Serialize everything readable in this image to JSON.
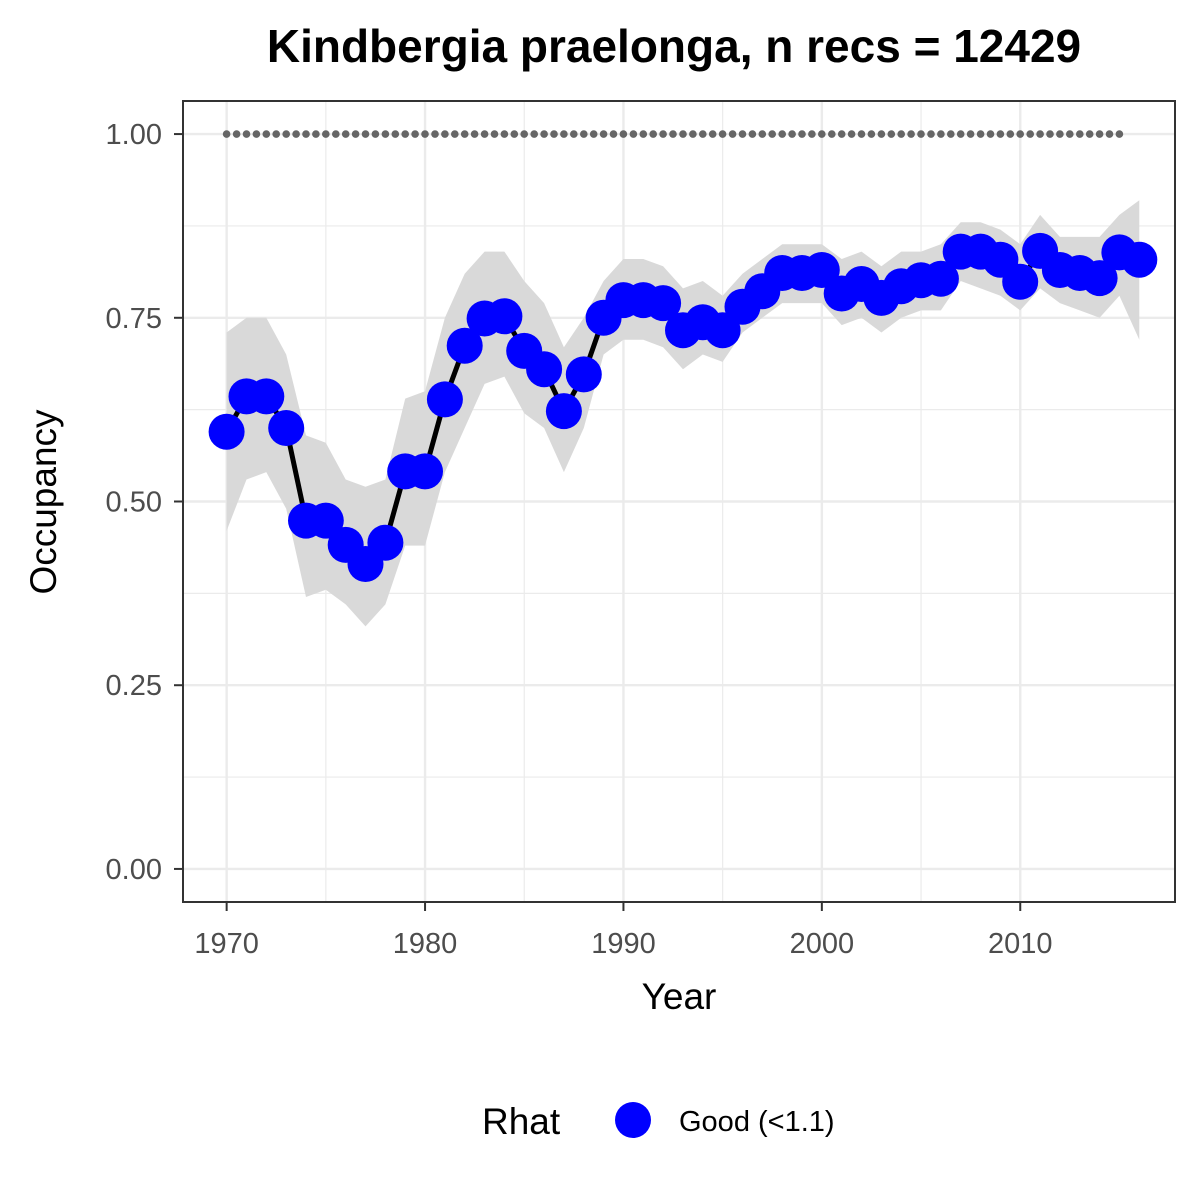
{
  "chart_data": {
    "type": "line",
    "title": "Kindbergia praelonga, n recs = 12429",
    "xlabel": "Year",
    "ylabel": "Occupancy",
    "xlim": [
      1967.8,
      2017.8
    ],
    "ylim": [
      -0.045,
      1.045
    ],
    "x_ticks": [
      1970,
      1980,
      1990,
      2000,
      2010
    ],
    "x_tick_labels": [
      "1970",
      "1980",
      "1990",
      "2000",
      "2010"
    ],
    "y_ticks": [
      0,
      0.25,
      0.5,
      0.75,
      1.0
    ],
    "y_tick_labels": [
      "0.00",
      "0.25",
      "0.50",
      "0.75",
      "1.00"
    ],
    "grid": true,
    "legend": {
      "title": "Rhat",
      "position": "bottom",
      "items": [
        {
          "label": "Good (<1.1)",
          "color": "#0000ff"
        }
      ]
    },
    "colors": {
      "points": "#0000ff",
      "line": "#000000",
      "ribbon": "#d9d9d9",
      "reference": "#666666",
      "grid": "#ebebeb",
      "panel_border": "#333333"
    },
    "x": [
      1970,
      1971,
      1972,
      1973,
      1974,
      1975,
      1976,
      1977,
      1978,
      1979,
      1980,
      1981,
      1982,
      1983,
      1984,
      1985,
      1986,
      1987,
      1988,
      1989,
      1990,
      1991,
      1992,
      1993,
      1994,
      1995,
      1996,
      1997,
      1998,
      1999,
      2000,
      2001,
      2002,
      2003,
      2004,
      2005,
      2006,
      2007,
      2008,
      2009,
      2010,
      2011,
      2012,
      2013,
      2014,
      2015,
      2016
    ],
    "series": [
      {
        "name": "Good (<1.1)",
        "values": [
          0.595,
          0.643,
          0.643,
          0.6,
          0.474,
          0.474,
          0.441,
          0.415,
          0.444,
          0.541,
          0.541,
          0.639,
          0.712,
          0.749,
          0.752,
          0.705,
          0.68,
          0.623,
          0.673,
          0.75,
          0.774,
          0.774,
          0.77,
          0.733,
          0.744,
          0.733,
          0.765,
          0.786,
          0.811,
          0.811,
          0.815,
          0.783,
          0.796,
          0.777,
          0.793,
          0.801,
          0.803,
          0.84,
          0.84,
          0.829,
          0.799,
          0.841,
          0.815,
          0.811,
          0.804,
          0.839,
          0.829
        ],
        "lower": [
          0.46,
          0.53,
          0.54,
          0.49,
          0.37,
          0.38,
          0.36,
          0.33,
          0.36,
          0.44,
          0.44,
          0.54,
          0.6,
          0.66,
          0.67,
          0.62,
          0.6,
          0.54,
          0.6,
          0.7,
          0.72,
          0.72,
          0.71,
          0.68,
          0.7,
          0.69,
          0.73,
          0.75,
          0.77,
          0.77,
          0.77,
          0.74,
          0.75,
          0.73,
          0.75,
          0.76,
          0.76,
          0.8,
          0.79,
          0.78,
          0.76,
          0.79,
          0.77,
          0.76,
          0.75,
          0.78,
          0.72
        ],
        "upper": [
          0.73,
          0.75,
          0.75,
          0.7,
          0.59,
          0.58,
          0.53,
          0.52,
          0.53,
          0.64,
          0.65,
          0.75,
          0.81,
          0.84,
          0.84,
          0.8,
          0.77,
          0.71,
          0.75,
          0.8,
          0.83,
          0.83,
          0.82,
          0.79,
          0.8,
          0.78,
          0.81,
          0.83,
          0.85,
          0.85,
          0.85,
          0.83,
          0.84,
          0.82,
          0.84,
          0.84,
          0.85,
          0.88,
          0.88,
          0.87,
          0.85,
          0.89,
          0.86,
          0.86,
          0.86,
          0.89,
          0.91
        ]
      }
    ],
    "reference_line": {
      "y": 1.0,
      "x_from": 1970,
      "x_to": 2015,
      "style": "dotted"
    }
  }
}
